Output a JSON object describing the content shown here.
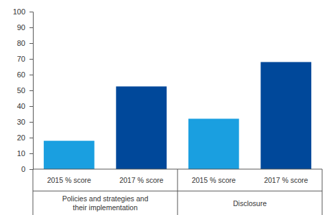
{
  "chart_data": {
    "type": "bar",
    "categories": [
      "Policies and strategies and their implementation",
      "Disclosure"
    ],
    "series": [
      {
        "name": "2015 % score",
        "color": "#1a9fe0",
        "values": [
          18,
          32
        ]
      },
      {
        "name": "2017 % score",
        "color": "#00489a",
        "values": [
          52.5,
          68
        ]
      }
    ],
    "ylim": [
      0,
      100
    ],
    "yticks": [
      0,
      10,
      20,
      30,
      40,
      50,
      60,
      70,
      80,
      90,
      100
    ],
    "grid": false
  }
}
